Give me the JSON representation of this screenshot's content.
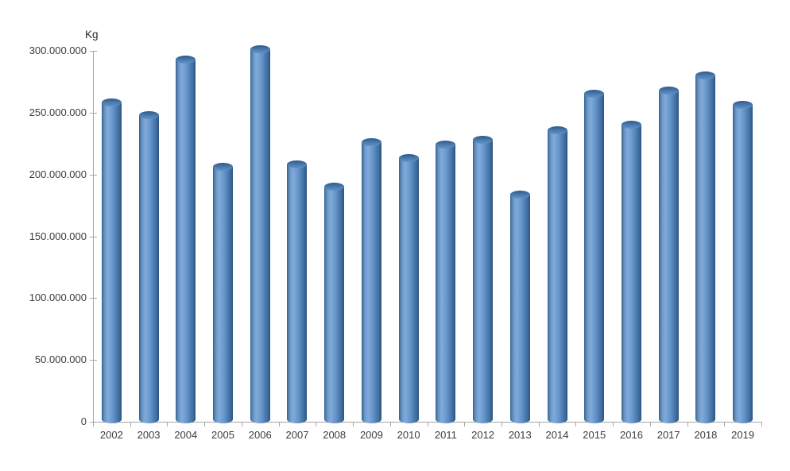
{
  "chart_data": {
    "type": "bar",
    "subtype": "cylinder-3d",
    "title": "",
    "xlabel": "",
    "ylabel": "Kg",
    "legend": "none",
    "grid": false,
    "categories": [
      "2002",
      "2003",
      "2004",
      "2005",
      "2006",
      "2007",
      "2008",
      "2009",
      "2010",
      "2011",
      "2012",
      "2013",
      "2014",
      "2015",
      "2016",
      "2017",
      "2018",
      "2019"
    ],
    "values": [
      258000000,
      248000000,
      293000000,
      206000000,
      301000000,
      208000000,
      190000000,
      226000000,
      213000000,
      224000000,
      228000000,
      184000000,
      236000000,
      265000000,
      240000000,
      268000000,
      280000000,
      256000000
    ],
    "ylim": [
      0,
      300000000
    ],
    "y_ticks": [
      {
        "value": 0,
        "label": "0"
      },
      {
        "value": 50000000,
        "label": "50.000.000"
      },
      {
        "value": 100000000,
        "label": "100.000.000"
      },
      {
        "value": 150000000,
        "label": "150.000.000"
      },
      {
        "value": 200000000,
        "label": "200.000.000"
      },
      {
        "value": 250000000,
        "label": "250.000.000"
      },
      {
        "value": 300000000,
        "label": "300.000.000"
      }
    ],
    "colors": {
      "bar_fill": "#4f81bd",
      "bar_highlight": "#81a9d8",
      "bar_shadow": "#2a5480",
      "axis": "#a6a6a6",
      "label": "#3d3d3d",
      "background": "#ffffff"
    }
  }
}
